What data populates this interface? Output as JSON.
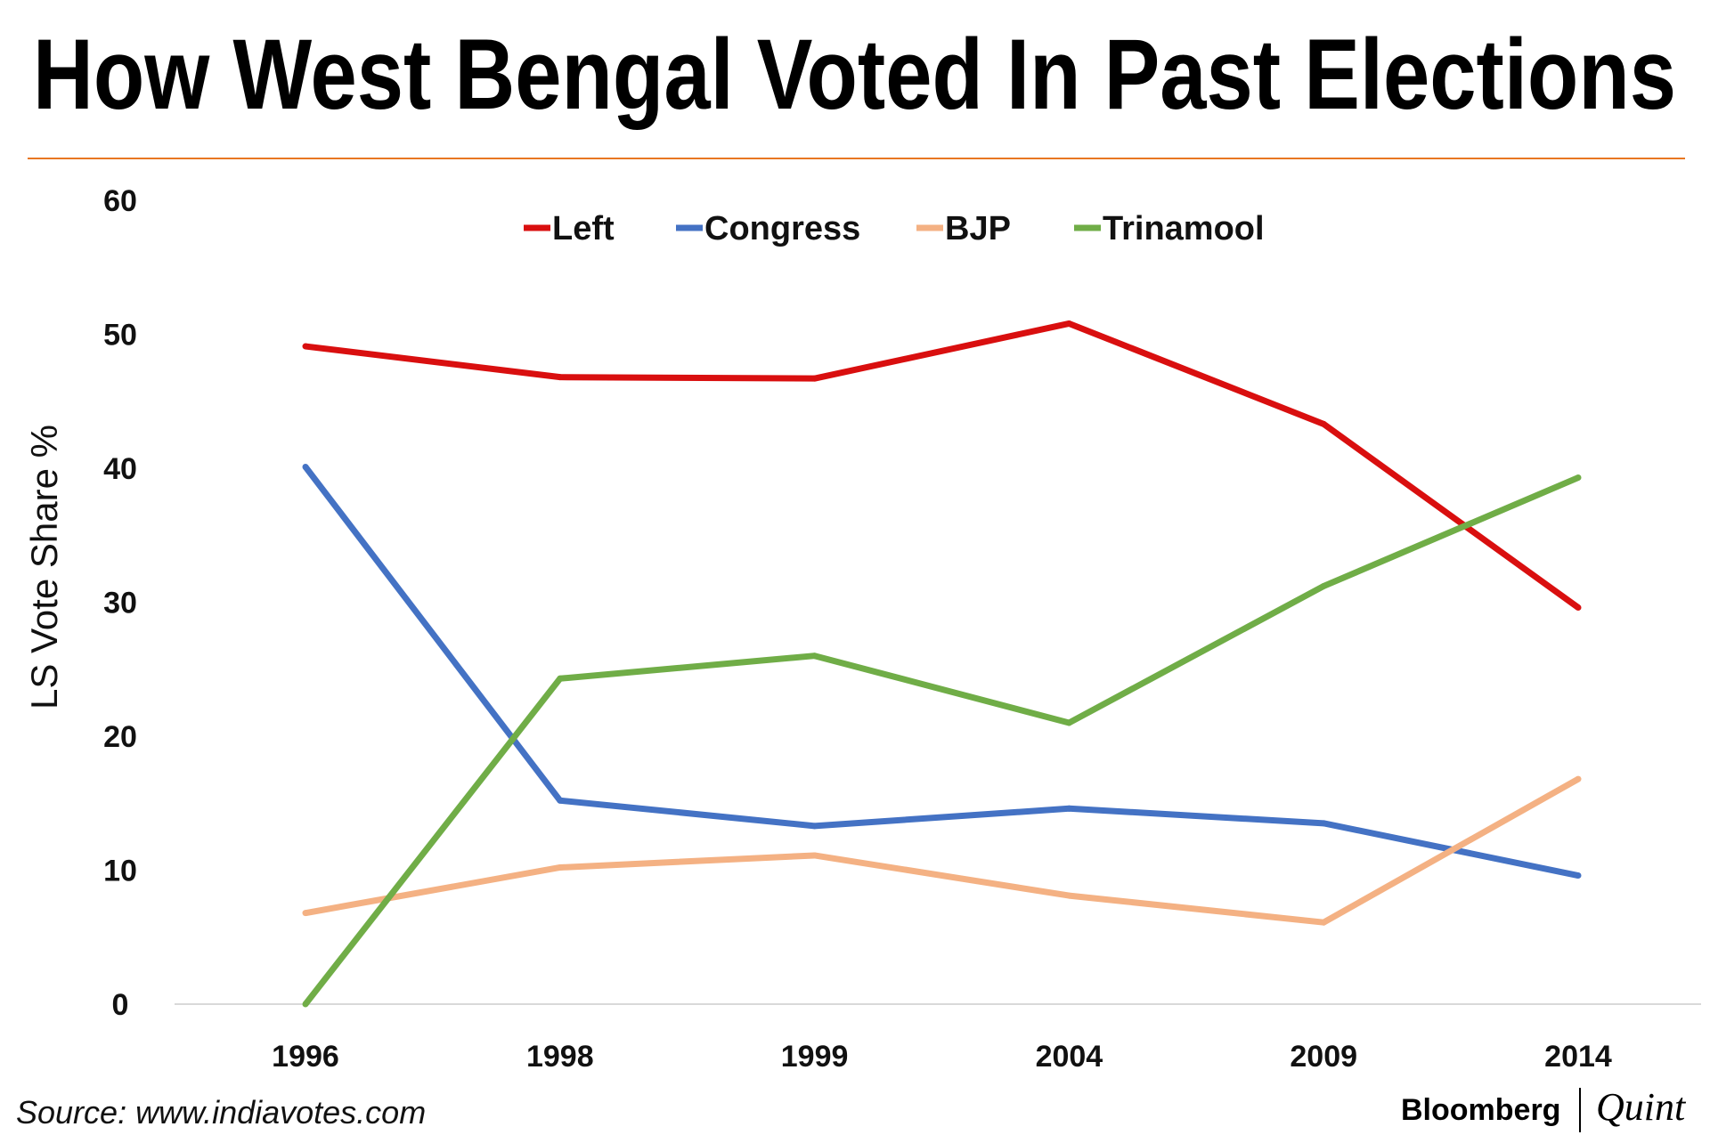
{
  "source": "Source: www.indiavotes.com",
  "logo": {
    "brand": "Bloomberg",
    "sub": "Quint"
  },
  "chart_data": {
    "type": "line",
    "title": "How West Bengal Voted In Past Elections",
    "xlabel": "",
    "ylabel": "LS Vote Share %",
    "categories": [
      "1996",
      "1998",
      "1999",
      "2004",
      "2009",
      "2014"
    ],
    "ylim": [
      0,
      60
    ],
    "yticks": [
      "0",
      "10",
      "20",
      "30",
      "40",
      "50",
      "60"
    ],
    "legend_position": "top-center",
    "grid": false,
    "series": [
      {
        "name": "Left",
        "color": "#d90f0f",
        "values": [
          49.1,
          46.8,
          46.7,
          50.8,
          43.3,
          29.6
        ]
      },
      {
        "name": "Congress",
        "color": "#4472c4",
        "values": [
          40.1,
          15.2,
          13.3,
          14.6,
          13.5,
          9.6
        ]
      },
      {
        "name": "BJP",
        "color": "#f4b183",
        "values": [
          6.8,
          10.2,
          11.1,
          8.1,
          6.1,
          16.8
        ]
      },
      {
        "name": "Trinamool",
        "color": "#70ad47",
        "values": [
          0,
          24.3,
          26.0,
          21.0,
          31.2,
          39.3
        ]
      }
    ]
  }
}
